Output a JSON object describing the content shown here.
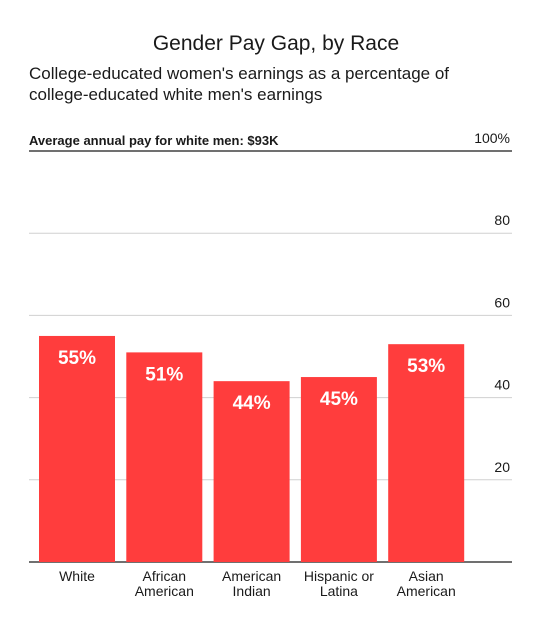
{
  "chart_data": {
    "type": "bar",
    "title": "Gender Pay Gap, by Race",
    "subtitle_lines": [
      "College-educated women's earnings as a percentage of",
      "college-educated white men's earnings"
    ],
    "note": "Average annual pay for white men: $93K",
    "categories": [
      [
        "White"
      ],
      [
        "African",
        "American"
      ],
      [
        "American",
        "Indian"
      ],
      [
        "Hispanic or",
        "Latina"
      ],
      [
        "Asian",
        "American"
      ]
    ],
    "values": [
      55,
      51,
      44,
      45,
      53
    ],
    "value_labels": [
      "55%",
      "51%",
      "44%",
      "45%",
      "53%"
    ],
    "y_ticks": [
      {
        "value": 100,
        "label": "100%"
      },
      {
        "value": 80,
        "label": "80"
      },
      {
        "value": 60,
        "label": "60"
      },
      {
        "value": 40,
        "label": "40"
      },
      {
        "value": 20,
        "label": "20"
      }
    ],
    "ylim": [
      0,
      100
    ],
    "grid": true,
    "bar_color": "#ff3d3d",
    "value_label_color": "#ffffff",
    "grid_color": "#d0d0d0",
    "axis_color": "#1a1a1a"
  }
}
